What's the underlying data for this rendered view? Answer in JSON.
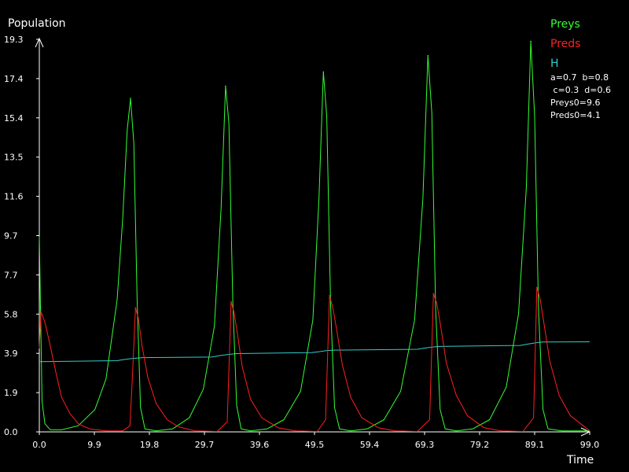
{
  "chart_data": {
    "type": "line",
    "xlabel": "Time",
    "ylabel": "Population",
    "xlim": [
      0,
      99
    ],
    "ylim": [
      0,
      19.3
    ],
    "xticks": [
      "0.0",
      "9.9",
      "19.8",
      "29.7",
      "39.6",
      "49.5",
      "59.4",
      "69.3",
      "79.2",
      "89.1",
      "99.0"
    ],
    "yticks": [
      "0.0",
      "1.9",
      "3.9",
      "5.8",
      "7.7",
      "9.7",
      "11.6",
      "13.5",
      "15.4",
      "17.4",
      "19.3"
    ],
    "legend_position": "top-right",
    "params": [
      "a=0.7  b=0.8",
      " c=0.3  d=0.6",
      "Preys0=9.6",
      "Preds0=4.1"
    ],
    "series": [
      {
        "name": "Preys",
        "color": "#33ff33",
        "peaks": [
          [
            16.4,
            16.4
          ],
          [
            33.5,
            17.0
          ],
          [
            51.1,
            17.7
          ],
          [
            69.9,
            18.5
          ],
          [
            88.4,
            19.2
          ]
        ],
        "x": [
          0,
          0.5,
          1,
          2,
          4,
          7,
          10,
          12,
          14,
          15,
          15.8,
          16.4,
          17,
          17.6,
          18.2,
          19,
          21,
          24,
          27,
          29.5,
          31.5,
          32.7,
          33.5,
          34.1,
          34.8,
          35.5,
          36.3,
          38,
          41,
          44,
          47,
          49.2,
          50.3,
          51.1,
          51.7,
          52.4,
          53.1,
          54,
          56,
          59,
          62,
          65,
          67.5,
          69,
          69.9,
          70.6,
          71.3,
          72.1,
          73,
          75,
          78,
          81,
          84,
          86.2,
          87.6,
          88.4,
          89.1,
          89.8,
          90.6,
          91.5,
          94,
          97,
          99
        ],
        "values": [
          9.6,
          1.5,
          0.4,
          0.1,
          0.1,
          0.3,
          1.1,
          2.6,
          6.5,
          10.5,
          14.8,
          16.4,
          14.2,
          6.5,
          1.2,
          0.15,
          0.05,
          0.15,
          0.7,
          2.1,
          5.2,
          11.0,
          17.0,
          15.2,
          6.4,
          1.3,
          0.15,
          0.05,
          0.15,
          0.6,
          2.0,
          5.5,
          11.5,
          17.7,
          15.5,
          6.2,
          1.2,
          0.15,
          0.05,
          0.15,
          0.6,
          2.0,
          5.5,
          11.5,
          18.5,
          15.7,
          6.0,
          1.1,
          0.15,
          0.05,
          0.15,
          0.6,
          2.2,
          5.8,
          12.0,
          19.2,
          15.5,
          6.0,
          1.1,
          0.15,
          0.05,
          0.05,
          0.05
        ]
      },
      {
        "name": "Preds",
        "color": "#ff2020",
        "peaks": [
          [
            0.3,
            5.9
          ],
          [
            17.3,
            6.1
          ],
          [
            34.5,
            6.4
          ],
          [
            52.2,
            6.7
          ],
          [
            70.9,
            6.8
          ],
          [
            89.5,
            7.1
          ]
        ],
        "x": [
          0,
          0.3,
          1,
          2,
          3,
          4,
          5.5,
          7,
          9,
          12,
          15,
          16.3,
          16.8,
          17.3,
          17.8,
          18.5,
          19.5,
          21,
          23,
          25,
          28,
          32,
          33.8,
          34.5,
          35,
          35.6,
          36.5,
          38,
          40,
          43,
          46,
          50,
          51.5,
          52.2,
          52.8,
          53.5,
          54.5,
          56,
          58,
          61,
          64,
          68,
          70.2,
          70.9,
          71.5,
          72.2,
          73.2,
          75,
          77,
          80,
          83,
          87,
          88.9,
          89.5,
          90.1,
          90.8,
          91.8,
          93.5,
          95.5,
          99
        ],
        "values": [
          4.1,
          5.9,
          5.4,
          4.2,
          2.9,
          1.7,
          0.9,
          0.4,
          0.15,
          0.05,
          0.05,
          0.3,
          3.0,
          6.1,
          5.6,
          4.2,
          2.7,
          1.4,
          0.6,
          0.25,
          0.05,
          0.02,
          0.5,
          6.4,
          5.9,
          4.9,
          3.2,
          1.6,
          0.7,
          0.2,
          0.05,
          0.02,
          0.6,
          6.7,
          6.1,
          5.0,
          3.3,
          1.7,
          0.7,
          0.2,
          0.05,
          0.02,
          0.6,
          6.8,
          6.3,
          5.2,
          3.4,
          1.8,
          0.8,
          0.2,
          0.05,
          0.02,
          0.7,
          7.1,
          6.5,
          5.3,
          3.5,
          1.8,
          0.8,
          0.05
        ]
      },
      {
        "name": "H",
        "color": "#33cccc",
        "x": [
          0,
          14,
          15,
          16.5,
          18.5,
          31,
          32.5,
          33.8,
          35.5,
          49,
          50.5,
          51.7,
          53,
          68,
          69.3,
          70.6,
          72,
          86.5,
          88,
          89.3,
          90.5,
          99
        ],
        "values": [
          3.45,
          3.5,
          3.55,
          3.6,
          3.65,
          3.68,
          3.75,
          3.8,
          3.85,
          3.9,
          3.95,
          4.0,
          4.02,
          4.06,
          4.12,
          4.17,
          4.2,
          4.25,
          4.32,
          4.38,
          4.42,
          4.43
        ]
      }
    ]
  }
}
